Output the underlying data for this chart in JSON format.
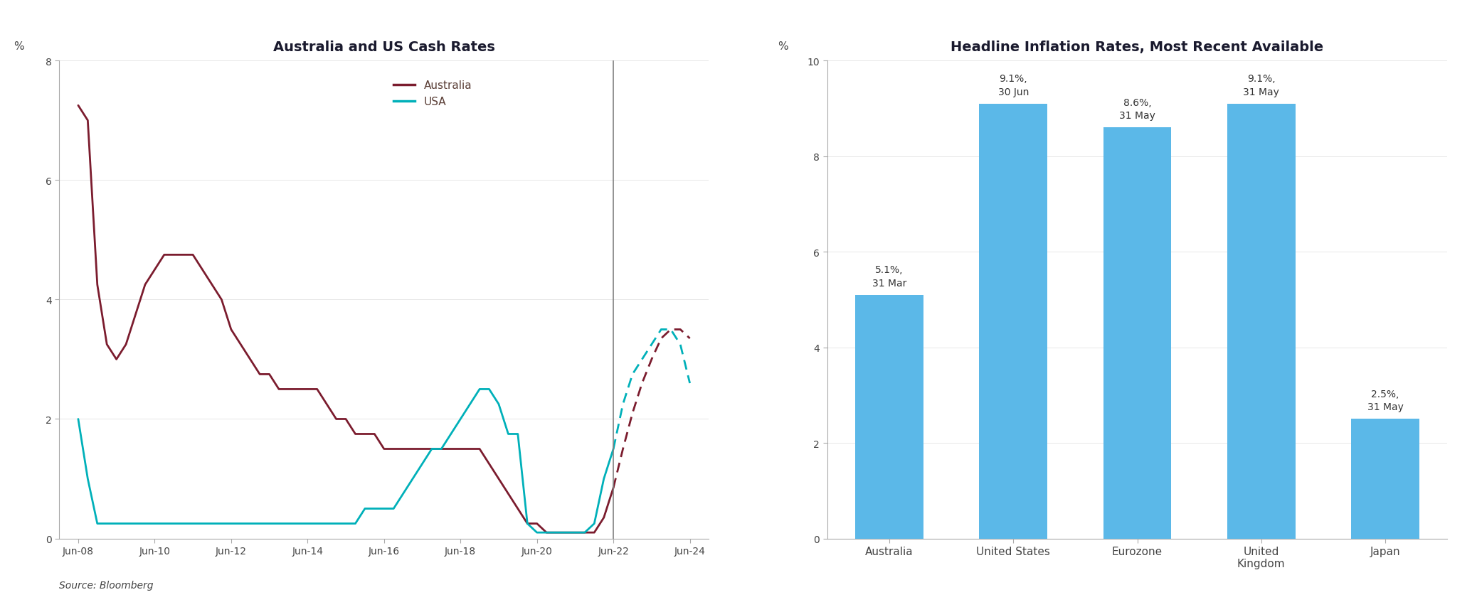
{
  "chart1_title": "Australia and US Cash Rates",
  "chart2_title": "Headline Inflation Rates, Most Recent Available",
  "source_text": "Source: Bloomberg",
  "chart1_ylabel": "%",
  "chart2_ylabel": "%",
  "chart1_ylim": [
    0,
    8
  ],
  "chart1_yticks": [
    0,
    2,
    4,
    6,
    8
  ],
  "chart2_ylim": [
    0,
    10
  ],
  "chart2_yticks": [
    0,
    2,
    4,
    6,
    8,
    10
  ],
  "australia_color": "#7B1C2E",
  "usa_color": "#00B0B9",
  "australia_solid": {
    "dates": [
      2008.5,
      2008.75,
      2009.0,
      2009.25,
      2009.5,
      2009.75,
      2010.0,
      2010.25,
      2010.5,
      2010.75,
      2011.0,
      2011.25,
      2011.5,
      2011.75,
      2012.0,
      2012.25,
      2012.5,
      2012.75,
      2013.0,
      2013.25,
      2013.5,
      2013.75,
      2014.0,
      2014.25,
      2014.5,
      2014.75,
      2015.0,
      2015.25,
      2015.5,
      2015.75,
      2016.0,
      2016.25,
      2016.5,
      2016.75,
      2017.0,
      2017.25,
      2017.5,
      2017.75,
      2018.0,
      2018.25,
      2018.5,
      2018.75,
      2019.0,
      2019.25,
      2019.5,
      2019.75,
      2020.0,
      2020.25,
      2020.5,
      2020.75,
      2021.0,
      2021.25,
      2021.5,
      2021.75,
      2022.0,
      2022.25,
      2022.5
    ],
    "values": [
      7.25,
      7.0,
      4.25,
      3.25,
      3.0,
      3.25,
      3.75,
      4.25,
      4.5,
      4.75,
      4.75,
      4.75,
      4.75,
      4.5,
      4.25,
      4.0,
      3.5,
      3.25,
      3.0,
      2.75,
      2.75,
      2.5,
      2.5,
      2.5,
      2.5,
      2.5,
      2.25,
      2.0,
      2.0,
      1.75,
      1.75,
      1.75,
      1.5,
      1.5,
      1.5,
      1.5,
      1.5,
      1.5,
      1.5,
      1.5,
      1.5,
      1.5,
      1.5,
      1.25,
      1.0,
      0.75,
      0.5,
      0.25,
      0.25,
      0.1,
      0.1,
      0.1,
      0.1,
      0.1,
      0.1,
      0.35,
      0.85
    ]
  },
  "australia_dashed": {
    "dates": [
      2022.5,
      2022.75,
      2023.0,
      2023.25,
      2023.5,
      2023.75,
      2024.0,
      2024.25,
      2024.5
    ],
    "values": [
      0.85,
      1.5,
      2.1,
      2.6,
      3.0,
      3.35,
      3.5,
      3.5,
      3.35
    ]
  },
  "usa_solid": {
    "dates": [
      2008.5,
      2008.75,
      2009.0,
      2009.25,
      2009.5,
      2009.75,
      2010.0,
      2010.25,
      2010.5,
      2010.75,
      2011.0,
      2011.25,
      2011.5,
      2011.75,
      2012.0,
      2012.25,
      2012.5,
      2012.75,
      2013.0,
      2013.25,
      2013.5,
      2013.75,
      2014.0,
      2014.25,
      2014.5,
      2014.75,
      2015.0,
      2015.25,
      2015.5,
      2015.75,
      2016.0,
      2016.25,
      2016.5,
      2016.75,
      2017.0,
      2017.25,
      2017.5,
      2017.75,
      2018.0,
      2018.25,
      2018.5,
      2018.75,
      2019.0,
      2019.25,
      2019.5,
      2019.75,
      2020.0,
      2020.25,
      2020.5,
      2020.75,
      2021.0,
      2021.25,
      2021.5,
      2021.75,
      2022.0,
      2022.25,
      2022.5
    ],
    "values": [
      2.0,
      1.0,
      0.25,
      0.25,
      0.25,
      0.25,
      0.25,
      0.25,
      0.25,
      0.25,
      0.25,
      0.25,
      0.25,
      0.25,
      0.25,
      0.25,
      0.25,
      0.25,
      0.25,
      0.25,
      0.25,
      0.25,
      0.25,
      0.25,
      0.25,
      0.25,
      0.25,
      0.25,
      0.25,
      0.25,
      0.5,
      0.5,
      0.5,
      0.5,
      0.75,
      1.0,
      1.25,
      1.5,
      1.5,
      1.75,
      2.0,
      2.25,
      2.5,
      2.5,
      2.25,
      1.75,
      1.75,
      0.25,
      0.1,
      0.1,
      0.1,
      0.1,
      0.1,
      0.1,
      0.25,
      1.0,
      1.5
    ]
  },
  "usa_dashed": {
    "dates": [
      2022.5,
      2022.75,
      2023.0,
      2023.25,
      2023.5,
      2023.75,
      2024.0,
      2024.25,
      2024.5
    ],
    "values": [
      1.5,
      2.25,
      2.75,
      3.0,
      3.25,
      3.5,
      3.5,
      3.25,
      2.6
    ]
  },
  "vline_x": 2022.5,
  "bar_categories": [
    "Australia",
    "United States",
    "Eurozone",
    "United\nKingdom",
    "Japan"
  ],
  "bar_values": [
    5.1,
    9.1,
    8.6,
    9.1,
    2.5
  ],
  "bar_labels": [
    "5.1%,\n31 Mar",
    "9.1%,\n30 Jun",
    "8.6%,\n31 May",
    "9.1%,\n31 May",
    "2.5%,\n31 May"
  ],
  "bar_color": "#5BB8E8",
  "chart1_xticks": [
    2008.5,
    2010.5,
    2012.5,
    2014.5,
    2016.5,
    2018.5,
    2020.5,
    2022.5,
    2024.5
  ],
  "chart1_xticklabels": [
    "Jun-08",
    "Jun-10",
    "Jun-12",
    "Jun-14",
    "Jun-16",
    "Jun-18",
    "Jun-20",
    "Jun-22",
    "Jun-24"
  ],
  "chart1_xlim": [
    2008.0,
    2025.0
  ],
  "title_color": "#1a1a2e",
  "label_color": "#5a3e36"
}
